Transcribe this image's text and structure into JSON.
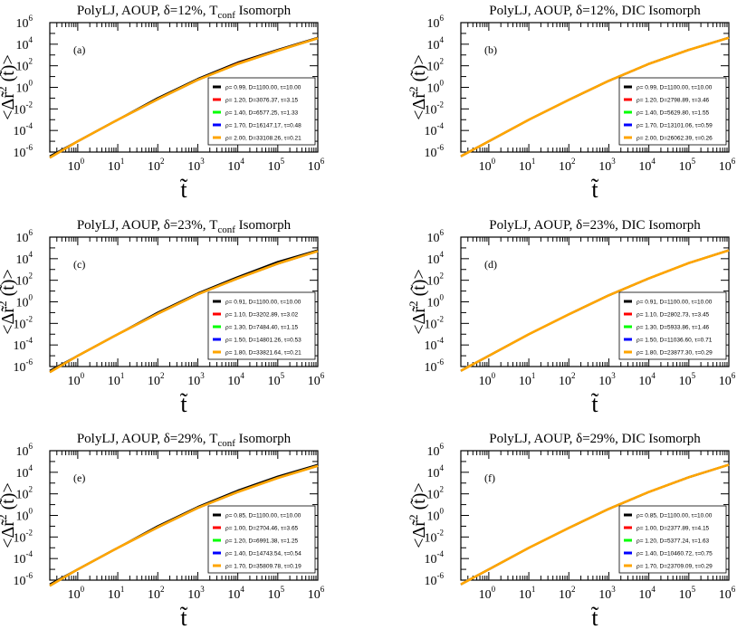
{
  "chart_data": [
    {
      "type": "line",
      "title": "PolyLJ, AOUP,  δ=12%, T",
      "title_sub": "conf",
      "title_tail": " Isomorph",
      "panel_label": "(a)",
      "xlabel": "t̃",
      "ylabel": "<Δr̃",
      "ylabel_sup": "2",
      "ylabel_tail": " (t̃)>",
      "xscale": "log",
      "yscale": "log",
      "xlim": [
        0.2,
        1000000
      ],
      "ylim": [
        1e-06,
        1000000
      ],
      "x_ticks": [
        "10",
        "10",
        "10",
        "10",
        "10",
        "10",
        "10"
      ],
      "x_tick_exps": [
        "0",
        "1",
        "2",
        "3",
        "4",
        "5",
        "6"
      ],
      "y_ticks": [
        "10",
        "10",
        "10",
        "10",
        "10",
        "10",
        "10"
      ],
      "y_tick_exps": [
        "-6",
        "-4",
        "-2",
        "0",
        "2",
        "4",
        "6"
      ],
      "legend_position": "center-right",
      "series": [
        {
          "name": "ρ= 0.99, D=1100.00,   τ=10.00",
          "color": "#000000",
          "x": [
            0.2,
            1,
            10,
            100,
            1000,
            10000,
            100000,
            1000000
          ],
          "y": [
            4e-07,
            1e-05,
            0.001,
            0.1,
            6,
            200,
            3000,
            40000
          ]
        },
        {
          "name": "ρ= 1.20, D=3076.37,   τ=3.15",
          "color": "#ff0000",
          "x": [
            0.2,
            1,
            10,
            100,
            1000,
            10000,
            100000,
            1000000
          ],
          "y": [
            3e-07,
            1e-05,
            0.001,
            0.08,
            5,
            160,
            2600,
            36000
          ]
        },
        {
          "name": "ρ= 1.40, D=6577.25,   τ=1.33",
          "color": "#00ff00",
          "x": [
            0.2,
            1,
            10,
            100,
            1000,
            10000,
            100000,
            1000000
          ],
          "y": [
            3e-07,
            1e-05,
            0.001,
            0.08,
            5,
            150,
            2500,
            35000
          ]
        },
        {
          "name": "ρ= 1.70, D=16147.17, τ=0.48",
          "color": "#0000ff",
          "x": [
            0.2,
            1,
            10,
            100,
            1000,
            10000,
            100000,
            1000000
          ],
          "y": [
            3e-07,
            1e-05,
            0.001,
            0.08,
            5,
            150,
            2500,
            35000
          ]
        },
        {
          "name": "ρ= 2.00, D=33108.26, τ=0.21",
          "color": "#ffa500",
          "x": [
            0.2,
            1,
            10,
            100,
            1000,
            10000,
            100000,
            1000000
          ],
          "y": [
            3e-07,
            1e-05,
            0.001,
            0.08,
            5,
            150,
            2500,
            35000
          ]
        }
      ]
    },
    {
      "type": "line",
      "title": "PolyLJ, AOUP,  δ=12%, DIC Isomorph",
      "title_sub": "",
      "title_tail": "",
      "panel_label": "(b)",
      "xlabel": "t̃",
      "ylabel": "<Δr̃",
      "ylabel_sup": "2",
      "ylabel_tail": " (t̃)>",
      "xscale": "log",
      "yscale": "log",
      "xlim": [
        0.2,
        1000000
      ],
      "ylim": [
        1e-06,
        1000000
      ],
      "x_ticks": [
        "10",
        "10",
        "10",
        "10",
        "10",
        "10",
        "10"
      ],
      "x_tick_exps": [
        "0",
        "1",
        "2",
        "3",
        "4",
        "5",
        "6"
      ],
      "y_ticks": [
        "10",
        "10",
        "10",
        "10",
        "10",
        "10",
        "10"
      ],
      "y_tick_exps": [
        "-6",
        "-4",
        "-2",
        "0",
        "2",
        "4",
        "6"
      ],
      "legend_position": "center-right",
      "series": [
        {
          "name": "ρ= 0.99, D=1100.00,   τ=10.00",
          "color": "#000000",
          "x": [
            0.2,
            1,
            10,
            100,
            1000,
            10000,
            100000,
            1000000
          ],
          "y": [
            4e-07,
            1e-05,
            0.001,
            0.07,
            4,
            150,
            3000,
            40000
          ]
        },
        {
          "name": "ρ= 1.20, D=2798.89,   τ=3.46",
          "color": "#ff0000",
          "x": [
            0.2,
            1,
            10,
            100,
            1000,
            10000,
            100000,
            1000000
          ],
          "y": [
            4e-07,
            1e-05,
            0.001,
            0.07,
            4,
            150,
            3000,
            40000
          ]
        },
        {
          "name": "ρ= 1.40, D=5629.80,   τ=1.55",
          "color": "#00ff00",
          "x": [
            0.2,
            1,
            10,
            100,
            1000,
            10000,
            100000,
            1000000
          ],
          "y": [
            4e-07,
            1e-05,
            0.001,
            0.07,
            4,
            150,
            3000,
            40000
          ]
        },
        {
          "name": "ρ= 1.70, D=13101.06, τ=0.59",
          "color": "#0000ff",
          "x": [
            0.2,
            1,
            10,
            100,
            1000,
            10000,
            100000,
            1000000
          ],
          "y": [
            4e-07,
            1e-05,
            0.001,
            0.07,
            4,
            150,
            3000,
            40000
          ]
        },
        {
          "name": "ρ= 2.00, D=26062.39, τ=0.26",
          "color": "#ffa500",
          "x": [
            0.2,
            1,
            10,
            100,
            1000,
            10000,
            100000,
            1000000
          ],
          "y": [
            4e-07,
            1e-05,
            0.001,
            0.07,
            4,
            150,
            3000,
            40000
          ]
        }
      ]
    },
    {
      "type": "line",
      "title": "PolyLJ, AOUP,  δ=23%, T",
      "title_sub": "conf",
      "title_tail": " Isomorph",
      "panel_label": "(c)",
      "xlabel": "t̃",
      "ylabel": "<Δr̃",
      "ylabel_sup": "2",
      "ylabel_tail": " (t̃)>",
      "xscale": "log",
      "yscale": "log",
      "xlim": [
        0.2,
        1000000
      ],
      "ylim": [
        1e-06,
        1000000
      ],
      "x_ticks": [
        "10",
        "10",
        "10",
        "10",
        "10",
        "10",
        "10"
      ],
      "x_tick_exps": [
        "0",
        "1",
        "2",
        "3",
        "4",
        "5",
        "6"
      ],
      "y_ticks": [
        "10",
        "10",
        "10",
        "10",
        "10",
        "10",
        "10"
      ],
      "y_tick_exps": [
        "-6",
        "-4",
        "-2",
        "0",
        "2",
        "4",
        "6"
      ],
      "legend_position": "center-right",
      "series": [
        {
          "name": "ρ= 0.91, D=1100.00,   τ=10.00",
          "color": "#000000",
          "x": [
            0.2,
            1,
            10,
            100,
            1000,
            10000,
            100000,
            1000000
          ],
          "y": [
            4e-07,
            1e-05,
            0.001,
            0.1,
            6,
            200,
            5000,
            60000
          ]
        },
        {
          "name": "ρ= 1.10, D=3202.89,   τ=3.02",
          "color": "#ff0000",
          "x": [
            0.2,
            1,
            10,
            100,
            1000,
            10000,
            100000,
            1000000
          ],
          "y": [
            3e-07,
            1e-05,
            0.001,
            0.08,
            5,
            150,
            3500,
            50000
          ]
        },
        {
          "name": "ρ= 1.30, D=7484.40,   τ=1.15",
          "color": "#00ff00",
          "x": [
            0.2,
            1,
            10,
            100,
            1000,
            10000,
            100000,
            1000000
          ],
          "y": [
            3e-07,
            1e-05,
            0.001,
            0.08,
            5,
            150,
            3500,
            50000
          ]
        },
        {
          "name": "ρ= 1.50, D=14801.26, τ=0.53",
          "color": "#0000ff",
          "x": [
            0.2,
            1,
            10,
            100,
            1000,
            10000,
            100000,
            1000000
          ],
          "y": [
            3e-07,
            1e-05,
            0.001,
            0.08,
            5,
            150,
            3500,
            50000
          ]
        },
        {
          "name": "ρ= 1.80, D=33821.64, τ=0.21",
          "color": "#ffa500",
          "x": [
            0.2,
            1,
            10,
            100,
            1000,
            10000,
            100000,
            1000000
          ],
          "y": [
            3e-07,
            1e-05,
            0.001,
            0.08,
            5,
            150,
            3500,
            50000
          ]
        }
      ]
    },
    {
      "type": "line",
      "title": "PolyLJ, AOUP,  δ=23%, DIC Isomorph",
      "title_sub": "",
      "title_tail": "",
      "panel_label": "(d)",
      "xlabel": "t̃",
      "ylabel": "<Δr̃",
      "ylabel_sup": "2",
      "ylabel_tail": " (t̃)>",
      "xscale": "log",
      "yscale": "log",
      "xlim": [
        0.2,
        1000000
      ],
      "ylim": [
        1e-06,
        1000000
      ],
      "x_ticks": [
        "10",
        "10",
        "10",
        "10",
        "10",
        "10",
        "10"
      ],
      "x_tick_exps": [
        "0",
        "1",
        "2",
        "3",
        "4",
        "5",
        "6"
      ],
      "y_ticks": [
        "10",
        "10",
        "10",
        "10",
        "10",
        "10",
        "10"
      ],
      "y_tick_exps": [
        "-6",
        "-4",
        "-2",
        "0",
        "2",
        "4",
        "6"
      ],
      "legend_position": "center-right",
      "series": [
        {
          "name": "ρ= 0.91, D=1100.00,   τ=10.00",
          "color": "#000000",
          "x": [
            0.2,
            1,
            10,
            100,
            1000,
            10000,
            100000,
            1000000
          ],
          "y": [
            4e-07,
            1e-05,
            0.001,
            0.07,
            4,
            150,
            4000,
            60000
          ]
        },
        {
          "name": "ρ= 1.10, D=2802.73,   τ=3.45",
          "color": "#ff0000",
          "x": [
            0.2,
            1,
            10,
            100,
            1000,
            10000,
            100000,
            1000000
          ],
          "y": [
            4e-07,
            1e-05,
            0.001,
            0.07,
            4,
            150,
            4000,
            60000
          ]
        },
        {
          "name": "ρ= 1.30, D=5933.86,   τ=1.46",
          "color": "#00ff00",
          "x": [
            0.2,
            1,
            10,
            100,
            1000,
            10000,
            100000,
            1000000
          ],
          "y": [
            4e-07,
            1e-05,
            0.001,
            0.07,
            4,
            150,
            4000,
            60000
          ]
        },
        {
          "name": "ρ= 1.50, D=11036.60, τ=0.71",
          "color": "#0000ff",
          "x": [
            0.2,
            1,
            10,
            100,
            1000,
            10000,
            100000,
            1000000
          ],
          "y": [
            4e-07,
            1e-05,
            0.001,
            0.07,
            4,
            150,
            4000,
            60000
          ]
        },
        {
          "name": "ρ= 1.80, D=23877.30, τ=0.29",
          "color": "#ffa500",
          "x": [
            0.2,
            1,
            10,
            100,
            1000,
            10000,
            100000,
            1000000
          ],
          "y": [
            4e-07,
            1e-05,
            0.001,
            0.07,
            4,
            150,
            4000,
            60000
          ]
        }
      ]
    },
    {
      "type": "line",
      "title": "PolyLJ, AOUP,  δ=29%, T",
      "title_sub": "conf",
      "title_tail": " Isomorph",
      "panel_label": "(e)",
      "xlabel": "t̃",
      "ylabel": "<Δr̃",
      "ylabel_sup": "2",
      "ylabel_tail": " (t̃)>",
      "xscale": "log",
      "yscale": "log",
      "xlim": [
        0.2,
        1000000
      ],
      "ylim": [
        1e-06,
        1000000
      ],
      "x_ticks": [
        "10",
        "10",
        "10",
        "10",
        "10",
        "10",
        "10"
      ],
      "x_tick_exps": [
        "0",
        "1",
        "2",
        "3",
        "4",
        "5",
        "6"
      ],
      "y_ticks": [
        "10",
        "10",
        "10",
        "10",
        "10",
        "10",
        "10"
      ],
      "y_tick_exps": [
        "-6",
        "-4",
        "-2",
        "0",
        "2",
        "4",
        "6"
      ],
      "legend_position": "center-right",
      "series": [
        {
          "name": "ρ= 0.85, D=1100.00,   τ=10.00",
          "color": "#000000",
          "x": [
            0.2,
            1,
            10,
            100,
            1000,
            10000,
            100000,
            1000000
          ],
          "y": [
            4e-07,
            1e-05,
            0.001,
            0.1,
            6,
            200,
            4000,
            50000
          ]
        },
        {
          "name": "ρ= 1.00, D=2704.46,   τ=3.65",
          "color": "#ff0000",
          "x": [
            0.2,
            1,
            10,
            100,
            1000,
            10000,
            100000,
            1000000
          ],
          "y": [
            3e-07,
            1e-05,
            0.001,
            0.08,
            5,
            150,
            3000,
            40000
          ]
        },
        {
          "name": "ρ= 1.20, D=6991.38,   τ=1.25",
          "color": "#00ff00",
          "x": [
            0.2,
            1,
            10,
            100,
            1000,
            10000,
            100000,
            1000000
          ],
          "y": [
            3e-07,
            1e-05,
            0.001,
            0.08,
            5,
            150,
            3000,
            40000
          ]
        },
        {
          "name": "ρ= 1.40, D=14743.54, τ=0.54",
          "color": "#0000ff",
          "x": [
            0.2,
            1,
            10,
            100,
            1000,
            10000,
            100000,
            1000000
          ],
          "y": [
            3e-07,
            1e-05,
            0.001,
            0.08,
            5,
            150,
            3000,
            40000
          ]
        },
        {
          "name": "ρ= 1.70, D=35809.78, τ=0.19",
          "color": "#ffa500",
          "x": [
            0.2,
            1,
            10,
            100,
            1000,
            10000,
            100000,
            1000000
          ],
          "y": [
            3e-07,
            1e-05,
            0.001,
            0.08,
            5,
            150,
            3000,
            40000
          ]
        }
      ]
    },
    {
      "type": "line",
      "title": "PolyLJ, AOUP,  δ=29%, DIC Isomorph",
      "title_sub": "",
      "title_tail": "",
      "panel_label": "(f)",
      "xlabel": "t̃",
      "ylabel": "<Δr̃",
      "ylabel_sup": "2",
      "ylabel_tail": " (t̃)>",
      "xscale": "log",
      "yscale": "log",
      "xlim": [
        0.2,
        1000000
      ],
      "ylim": [
        1e-06,
        1000000
      ],
      "x_ticks": [
        "10",
        "10",
        "10",
        "10",
        "10",
        "10",
        "10"
      ],
      "x_tick_exps": [
        "0",
        "1",
        "2",
        "3",
        "4",
        "5",
        "6"
      ],
      "y_ticks": [
        "10",
        "10",
        "10",
        "10",
        "10",
        "10",
        "10"
      ],
      "y_tick_exps": [
        "-6",
        "-4",
        "-2",
        "0",
        "2",
        "4",
        "6"
      ],
      "legend_position": "center-right",
      "series": [
        {
          "name": "ρ= 0.85, D=1100.00,   τ=10.00",
          "color": "#000000",
          "x": [
            0.2,
            1,
            10,
            100,
            1000,
            10000,
            100000,
            1000000
          ],
          "y": [
            4e-07,
            1e-05,
            0.001,
            0.07,
            4,
            150,
            3500,
            50000
          ]
        },
        {
          "name": "ρ= 1.00, D=2377.89,   τ=4.15",
          "color": "#ff0000",
          "x": [
            0.2,
            1,
            10,
            100,
            1000,
            10000,
            100000,
            1000000
          ],
          "y": [
            4e-07,
            1e-05,
            0.001,
            0.07,
            4,
            150,
            3500,
            50000
          ]
        },
        {
          "name": "ρ= 1.20, D=5377.24,   τ=1.63",
          "color": "#00ff00",
          "x": [
            0.2,
            1,
            10,
            100,
            1000,
            10000,
            100000,
            1000000
          ],
          "y": [
            4e-07,
            1e-05,
            0.001,
            0.07,
            4,
            150,
            3500,
            50000
          ]
        },
        {
          "name": "ρ= 1.40, D=10460.72, τ=0.75",
          "color": "#0000ff",
          "x": [
            0.2,
            1,
            10,
            100,
            1000,
            10000,
            100000,
            1000000
          ],
          "y": [
            4e-07,
            1e-05,
            0.001,
            0.07,
            4,
            150,
            3500,
            50000
          ]
        },
        {
          "name": "ρ= 1.70, D=23709.09, τ=0.29",
          "color": "#ffa500",
          "x": [
            0.2,
            1,
            10,
            100,
            1000,
            10000,
            100000,
            1000000
          ],
          "y": [
            4e-07,
            1e-05,
            0.001,
            0.07,
            4,
            150,
            3500,
            50000
          ]
        }
      ]
    }
  ]
}
